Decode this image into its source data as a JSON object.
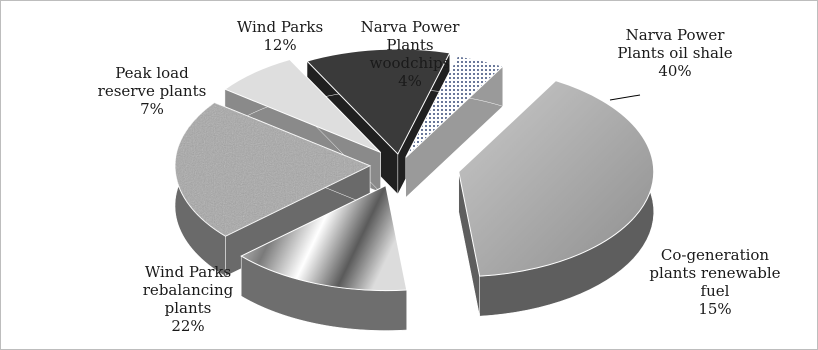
{
  "chart_data": {
    "type": "pie",
    "style": "3d-exploded",
    "title": "",
    "slices": [
      {
        "label": "Narva Power\nPlants oil shale",
        "value": 40,
        "pct_text": "40%",
        "color": "#8c8c8c"
      },
      {
        "label": "Co-generation\nplants renewable\nfuel",
        "value": 15,
        "pct_text": "15%",
        "color": "#a8a8a8"
      },
      {
        "label": "Wind Parks\nrebalancing\nplants",
        "value": 22,
        "pct_text": "22%",
        "color": "#9a9a9a"
      },
      {
        "label": "Peak load\nreserve plants",
        "value": 7,
        "pct_text": "7%",
        "color": "#d9d9d9"
      },
      {
        "label": "Wind Parks",
        "value": 12,
        "pct_text": "12%",
        "color": "#3a3a3a"
      },
      {
        "label": "Narva Power\nPlants\nwoodchips",
        "value": 4,
        "pct_text": "4%",
        "color": "#c8c8c8"
      }
    ]
  }
}
